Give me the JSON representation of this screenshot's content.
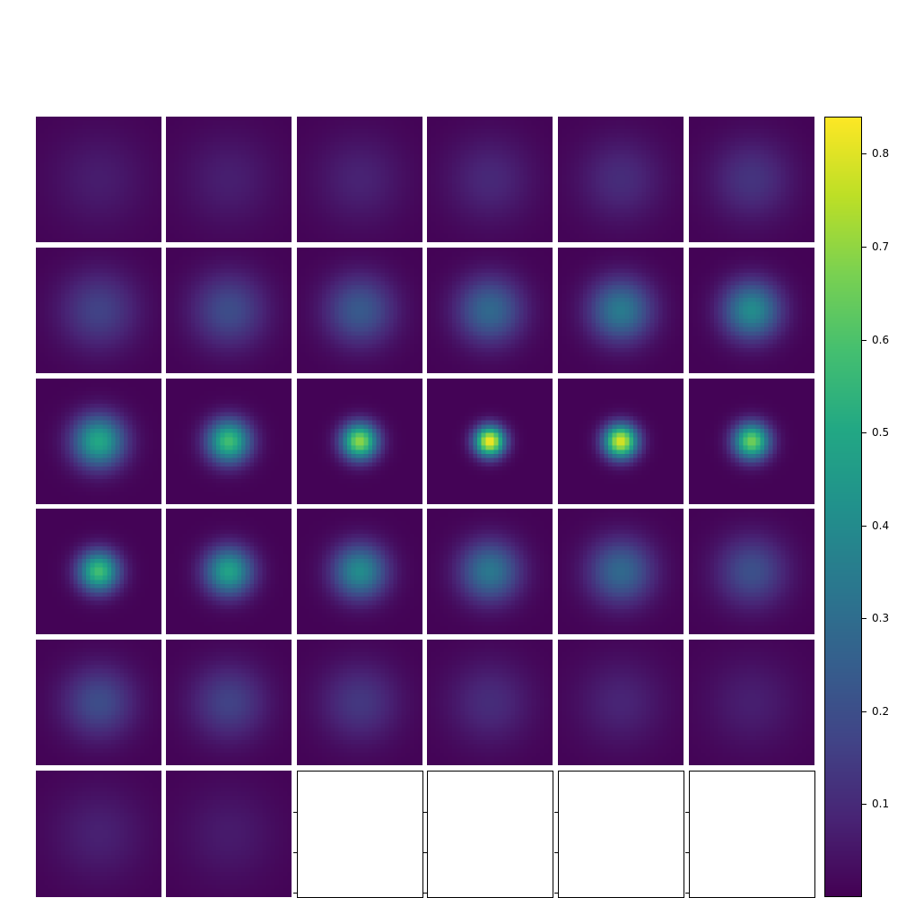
{
  "chart_data": {
    "type": "heatmap",
    "title": "",
    "layout": {
      "rows": 6,
      "cols": 6
    },
    "panel_count": 32,
    "empty_panels": 4,
    "colormap": "viridis",
    "colorbar": {
      "min": 0.0,
      "max": 0.84,
      "ticks": [
        "0.1",
        "0.2",
        "0.3",
        "0.4",
        "0.5",
        "0.6",
        "0.7",
        "0.8"
      ],
      "tick_values": [
        0.1,
        0.2,
        0.3,
        0.4,
        0.5,
        0.6,
        0.7,
        0.8
      ]
    },
    "panels": [
      {
        "index": 1,
        "peak": 0.06,
        "width": 8.0
      },
      {
        "index": 2,
        "peak": 0.065,
        "width": 7.8
      },
      {
        "index": 3,
        "peak": 0.075,
        "width": 7.5
      },
      {
        "index": 4,
        "peak": 0.09,
        "width": 7.2
      },
      {
        "index": 5,
        "peak": 0.1,
        "width": 7.0
      },
      {
        "index": 6,
        "peak": 0.12,
        "width": 6.8
      },
      {
        "index": 7,
        "peak": 0.16,
        "width": 6.5
      },
      {
        "index": 8,
        "peak": 0.19,
        "width": 6.2
      },
      {
        "index": 9,
        "peak": 0.23,
        "width": 5.8
      },
      {
        "index": 10,
        "peak": 0.28,
        "width": 5.5
      },
      {
        "index": 11,
        "peak": 0.34,
        "width": 5.2
      },
      {
        "index": 12,
        "peak": 0.4,
        "width": 4.8
      },
      {
        "index": 13,
        "peak": 0.5,
        "width": 4.3
      },
      {
        "index": 14,
        "peak": 0.58,
        "width": 3.6
      },
      {
        "index": 15,
        "peak": 0.7,
        "width": 3.0
      },
      {
        "index": 16,
        "peak": 0.84,
        "width": 2.5
      },
      {
        "index": 17,
        "peak": 0.8,
        "width": 2.8
      },
      {
        "index": 18,
        "peak": 0.66,
        "width": 3.0
      },
      {
        "index": 19,
        "peak": 0.58,
        "width": 3.4
      },
      {
        "index": 20,
        "peak": 0.48,
        "width": 4.0
      },
      {
        "index": 21,
        "peak": 0.4,
        "width": 4.5
      },
      {
        "index": 22,
        "peak": 0.33,
        "width": 5.0
      },
      {
        "index": 23,
        "peak": 0.28,
        "width": 5.4
      },
      {
        "index": 24,
        "peak": 0.2,
        "width": 5.8
      },
      {
        "index": 25,
        "peak": 0.19,
        "width": 6.0
      },
      {
        "index": 26,
        "peak": 0.16,
        "width": 6.3
      },
      {
        "index": 27,
        "peak": 0.13,
        "width": 6.6
      },
      {
        "index": 28,
        "peak": 0.1,
        "width": 7.0
      },
      {
        "index": 29,
        "peak": 0.08,
        "width": 7.3
      },
      {
        "index": 30,
        "peak": 0.065,
        "width": 7.6
      },
      {
        "index": 31,
        "peak": 0.07,
        "width": 7.8
      },
      {
        "index": 32,
        "peak": 0.055,
        "width": 8.0
      }
    ]
  }
}
